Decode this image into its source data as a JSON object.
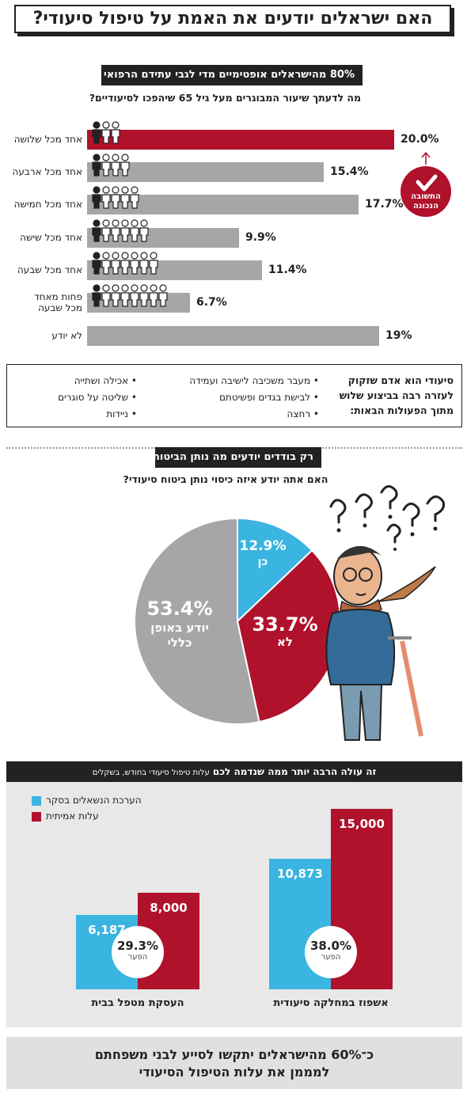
{
  "title": "האם ישראלים יודעים את האמת על טיפול סיעודי?",
  "section1": {
    "banner": "80% מהישראלים אופטימיים מדי לגבי עתידם הרפואי",
    "question": "מה לדעתך שיעור המבוגרים מעל גיל 65 שיהפכו לסיעודיים?",
    "correct_badge_line1": "התשובה",
    "correct_badge_line2": "הנכונה"
  },
  "colors": {
    "red": "#b0112b",
    "gray": "#a6a6a6",
    "blue": "#3ab4e0",
    "dark": "#222222"
  },
  "chart_data": [
    {
      "type": "bar",
      "title": "מה לדעתך שיעור המבוגרים מעל גיל 65 שיהפכו לסיעודיים?",
      "categories": [
        "אחד מכל שלושה",
        "אחד מכל ארבעה",
        "אחד מכל חמישה",
        "אחד מכל שישה",
        "אחד מכל שבעה",
        "פחות מאחד מכל שבעה",
        "לא יודע"
      ],
      "category_lines": [
        [
          "אחד מכל שלושה"
        ],
        [
          "אחד מכל ארבעה"
        ],
        [
          "אחד מכל חמישה"
        ],
        [
          "אחד מכל שישה"
        ],
        [
          "אחד מכל שבעה"
        ],
        [
          "פחות מאחד",
          "מכל שבעה"
        ],
        [
          "לא יודע"
        ]
      ],
      "values": [
        20.0,
        15.4,
        17.7,
        9.9,
        11.4,
        6.7,
        19
      ],
      "value_labels": [
        "20.0%",
        "15.4%",
        "17.7%",
        "9.9%",
        "11.4%",
        "6.7%",
        "19%"
      ],
      "figures": [
        3,
        4,
        5,
        6,
        7,
        8,
        0
      ],
      "highlight": 0
    },
    {
      "type": "pie",
      "title": "האם אתה יודע איזה כיסוי נותן ביטוח סיעודי?",
      "slices": [
        {
          "label": "כן",
          "value": 12.9,
          "value_label": "12.9%",
          "color": "#3ab4e0"
        },
        {
          "label": "לא",
          "value": 33.7,
          "value_label": "33.7%",
          "color": "#b0112b"
        },
        {
          "label": "יודע באופן כללי",
          "value": 53.4,
          "value_label": "53.4%",
          "color": "#a6a6a6"
        }
      ]
    },
    {
      "type": "bar",
      "title": "זה עולה הרבה יותר ממה שנדמה לכם עלות טיפול סיעודי בחודש, בשקלים",
      "categories": [
        "אשפוז במחלקה סיעודית",
        "העסקת מטפל בבית"
      ],
      "series": [
        {
          "name": "הערכת הנשאלים בסקר",
          "values": [
            10873,
            6187
          ],
          "value_labels": [
            "10,873",
            "6,187"
          ]
        },
        {
          "name": "עלות אמיתית",
          "values": [
            15000,
            8000
          ],
          "value_labels": [
            "15,000",
            "8,000"
          ]
        }
      ],
      "gaps": [
        "38.0%",
        "29.3%"
      ],
      "gap_label": "הפער",
      "ylim": [
        0,
        15000
      ]
    }
  ],
  "info_box": {
    "heading_lines": [
      "סיעודי הוא אדם שזקוק",
      "לעזרה רבה בביצוע שלוש",
      "מתוך הפעולות הבאות:"
    ],
    "items_col1": [
      "מעבר משכיבה לישיבה ועמידה",
      "לבישת בגדים ופשיטתם",
      "רחצה"
    ],
    "items_col2": [
      "אכילה ושתייה",
      "שליטה על סוגרים",
      "ניידות"
    ]
  },
  "section2": {
    "banner": "רק בודדים יודעים מה נותן הביטוח",
    "question": "האם אתה יודע איזה כיסוי נותן ביטוח סיעודי?",
    "pie_labels": {
      "yes_value": "12.9%",
      "yes": "כן",
      "no_value": "33.7%",
      "no": "לא",
      "gen_value": "53.4%",
      "gen_line1": "יודע באופן",
      "gen_line2": "כללי"
    }
  },
  "section3": {
    "banner": "זה עולה הרבה יותר ממה שנדמה לכם",
    "banner_small": "עלות טיפול סיעודי בחודש, בשקלים",
    "legend_estimate": "הערכת הנשאלים בסקר",
    "legend_actual": "עלות אמיתית"
  },
  "footer": {
    "line1": "כ־60% מהישראלים יתקשו לסייע לבני משפחתם",
    "line2": "למממן את עלות הטיפול הסיעודי"
  }
}
